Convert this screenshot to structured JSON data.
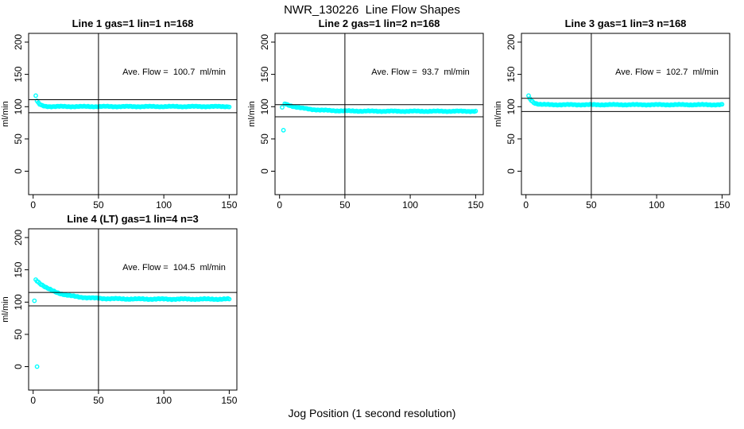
{
  "main_title": "NWR_130226  Line Flow Shapes",
  "x_axis_label": "Jog Position (1 second resolution)",
  "colors": {
    "points": "#00ffff",
    "axis": "#000000",
    "text": "#000000",
    "background": "#ffffff"
  },
  "chart_data": [
    {
      "type": "scatter",
      "title": "Line 1 gas=1 lin=1 n=168",
      "n": 168,
      "ave_flow": 100.7,
      "ave_label": "Ave. Flow =  100.7  ml/min",
      "y_axis_label": "ml/min",
      "x_ticks": [
        0,
        50,
        100,
        150
      ],
      "y_ticks": [
        0,
        50,
        100,
        150,
        200
      ],
      "xlim": [
        -3.5,
        156
      ],
      "ylim": [
        -36,
        214
      ],
      "grid": false,
      "ref_vline_x": 50,
      "ref_hlines": [
        110.8,
        90.6
      ],
      "lead_points": [
        [
          2,
          117
        ]
      ],
      "curve": {
        "x_start": 3,
        "x_end": 150,
        "y_start": 108.5,
        "y_settle": 100.2,
        "tau": 2.2,
        "jitter": 0.8
      }
    },
    {
      "type": "scatter",
      "title": "Line 2 gas=1 lin=2 n=168",
      "n": 168,
      "ave_flow": 93.7,
      "ave_label": "Ave. Flow =  93.7  ml/min",
      "y_axis_label": "ml/min",
      "x_ticks": [
        0,
        50,
        100,
        150
      ],
      "y_ticks": [
        0,
        50,
        100,
        150,
        200
      ],
      "xlim": [
        -3.5,
        156
      ],
      "ylim": [
        -36,
        214
      ],
      "grid": false,
      "ref_vline_x": 50,
      "ref_hlines": [
        103.1,
        84.3
      ],
      "lead_points": [
        [
          2,
          99
        ],
        [
          3,
          63.5
        ]
      ],
      "curve": {
        "x_start": 4,
        "x_end": 150,
        "y_start": 104.5,
        "y_settle": 92.9,
        "tau": 15,
        "jitter": 0.8
      }
    },
    {
      "type": "scatter",
      "title": "Line 3 gas=1 lin=3 n=168",
      "n": 168,
      "ave_flow": 102.7,
      "ave_label": "Ave. Flow =  102.7  ml/min",
      "y_axis_label": "ml/min",
      "x_ticks": [
        0,
        50,
        100,
        150
      ],
      "y_ticks": [
        0,
        50,
        100,
        150,
        200
      ],
      "xlim": [
        -3.5,
        156
      ],
      "ylim": [
        -36,
        214
      ],
      "grid": false,
      "ref_vline_x": 50,
      "ref_hlines": [
        113.0,
        92.4
      ],
      "lead_points": [
        [
          2,
          117
        ]
      ],
      "curve": {
        "x_start": 3,
        "x_end": 150,
        "y_start": 112.5,
        "y_settle": 103.0,
        "tau": 3,
        "jitter": 0.8
      }
    },
    {
      "type": "scatter",
      "title": "Line 4 (LT) gas=1 lin=4 n=3",
      "n": 3,
      "ave_flow": 104.5,
      "ave_label": "Ave. Flow =  104.5  ml/min",
      "y_axis_label": "ml/min",
      "x_ticks": [
        0,
        50,
        100,
        150
      ],
      "y_ticks": [
        0,
        50,
        100,
        150,
        200
      ],
      "xlim": [
        -3.5,
        156
      ],
      "ylim": [
        -36,
        214
      ],
      "grid": false,
      "ref_vline_x": 50,
      "ref_hlines": [
        115.0,
        94.1
      ],
      "lead_points": [
        [
          1,
          102
        ],
        [
          3,
          0
        ]
      ],
      "curve": {
        "x_start": 2,
        "x_end": 150,
        "y_start": 135,
        "y_settle": 104.6,
        "tau": 15,
        "jitter": 1.0
      }
    }
  ]
}
